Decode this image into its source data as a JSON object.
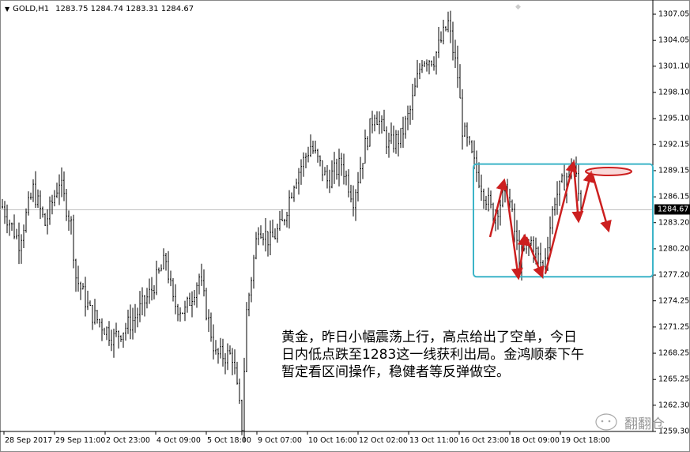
{
  "header": {
    "symbol": "GOLD,H1",
    "ohlc": "1283.75 1284.74 1283.31 1284.67"
  },
  "chart_data": {
    "type": "ohlc-bar",
    "symbol": "GOLD",
    "timeframe": "H1",
    "ylim": [
      1259.3,
      1307.05
    ],
    "y_ticks": [
      "1307.05",
      "1304.05",
      "1301.10",
      "1298.10",
      "1295.10",
      "1292.15",
      "1289.15",
      "1286.15",
      "1283.20",
      "1280.20",
      "1277.20",
      "1274.25",
      "1271.25",
      "1268.25",
      "1265.25",
      "1262.30",
      "1259.30"
    ],
    "current_price": "1284.67",
    "x_ticks": [
      "28 Sep 2017",
      "29 Sep 11:00",
      "2 Oct 23:00",
      "4 Oct 09:00",
      "5 Oct 18:00",
      "9 Oct 07:00",
      "10 Oct 16:00",
      "12 Oct 02:00",
      "13 Oct 11:00",
      "16 Oct 23:00",
      "18 Oct 09:00",
      "19 Oct 18:00"
    ],
    "approx_close_path": [
      [
        0,
        1285
      ],
      [
        7,
        1281
      ],
      [
        13,
        1287
      ],
      [
        18,
        1283
      ],
      [
        24,
        1288
      ],
      [
        29,
        1283
      ],
      [
        31,
        1277
      ],
      [
        37,
        1273
      ],
      [
        47,
        1270
      ],
      [
        55,
        1272
      ],
      [
        62,
        1275
      ],
      [
        69,
        1279
      ],
      [
        72,
        1274
      ],
      [
        77,
        1273
      ],
      [
        83,
        1277
      ],
      [
        90,
        1268
      ],
      [
        97,
        1268
      ],
      [
        101,
        1260
      ],
      [
        103,
        1273
      ],
      [
        108,
        1283
      ],
      [
        113,
        1281
      ],
      [
        118,
        1283
      ],
      [
        123,
        1288
      ],
      [
        130,
        1292
      ],
      [
        137,
        1288
      ],
      [
        143,
        1290
      ],
      [
        148,
        1286
      ],
      [
        153,
        1292
      ],
      [
        157,
        1296
      ],
      [
        163,
        1292
      ],
      [
        168,
        1293
      ],
      [
        172,
        1296
      ],
      [
        177,
        1302
      ],
      [
        182,
        1302
      ],
      [
        188,
        1306
      ],
      [
        192,
        1300
      ],
      [
        194,
        1294
      ],
      [
        200,
        1289
      ],
      [
        207,
        1284
      ],
      [
        213,
        1287
      ],
      [
        218,
        1279
      ],
      [
        223,
        1281
      ],
      [
        228,
        1278
      ],
      [
        233,
        1286
      ],
      [
        241,
        1290
      ],
      [
        244,
        1284.67
      ]
    ],
    "annotation_range": [
      1277.0,
      1289.9
    ],
    "colors": {
      "bars": "#000000",
      "range_box": "#3cb4c8",
      "arrows": "#cc1f1f",
      "price_line": "#c0c0c0"
    }
  },
  "annotation": {
    "lines": [
      "黄金，昨日小幅震荡上行，高点给出了空单，今日",
      "日内低点跌至1283这一线获利出局。金鸿顺泰下午",
      "暂定看区间操作，稳健者等反弹做空。"
    ]
  },
  "watermark": "翻翻仓"
}
